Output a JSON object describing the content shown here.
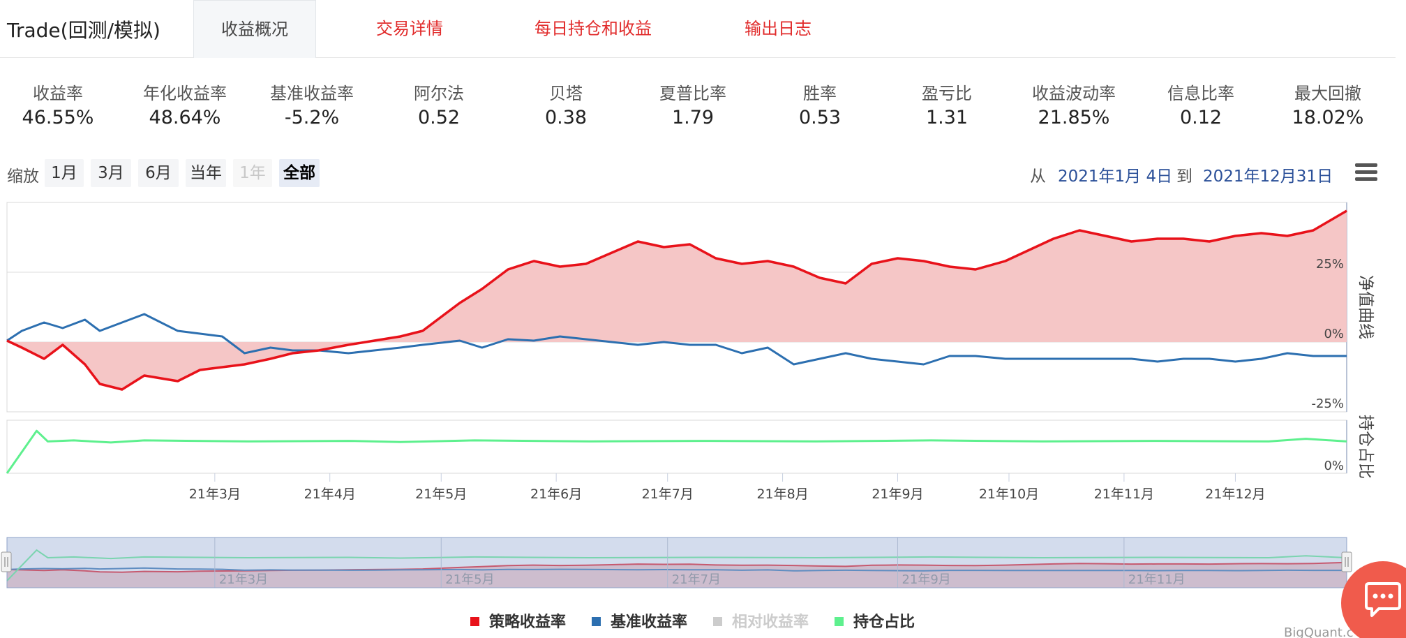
{
  "header": {
    "app_title": "Trade(回测/模拟)",
    "tabs": [
      {
        "label": "收益概况",
        "active": true
      },
      {
        "label": "交易详情",
        "active": false
      },
      {
        "label": "每日持仓和收益",
        "active": false
      },
      {
        "label": "输出日志",
        "active": false
      }
    ]
  },
  "stats": [
    {
      "label": "收益率",
      "value": "46.55%"
    },
    {
      "label": "年化收益率",
      "value": "48.64%"
    },
    {
      "label": "基准收益率",
      "value": "-5.2%"
    },
    {
      "label": "阿尔法",
      "value": "0.52"
    },
    {
      "label": "贝塔",
      "value": "0.38"
    },
    {
      "label": "夏普比率",
      "value": "1.79"
    },
    {
      "label": "胜率",
      "value": "0.53"
    },
    {
      "label": "盈亏比",
      "value": "1.31"
    },
    {
      "label": "收益波动率",
      "value": "21.85%"
    },
    {
      "label": "信息比率",
      "value": "0.12"
    },
    {
      "label": "最大回撤",
      "value": "18.02%"
    }
  ],
  "zoom": {
    "label": "缩放",
    "buttons": [
      {
        "label": "1月",
        "state": "normal"
      },
      {
        "label": "3月",
        "state": "normal"
      },
      {
        "label": "6月",
        "state": "normal"
      },
      {
        "label": "当年",
        "state": "normal"
      },
      {
        "label": "1年",
        "state": "disabled"
      },
      {
        "label": "全部",
        "state": "selected"
      }
    ],
    "from_label": "从",
    "from_date": "2021年1月 4日",
    "to_label": "到",
    "to_date": "2021年12月31日",
    "menu_icon": "hamburger-menu-icon"
  },
  "chart_data": {
    "type": "line",
    "x_range": [
      "2021-01-04",
      "2021-12-31"
    ],
    "x_tick_labels": [
      "21年3月",
      "21年4月",
      "21年5月",
      "21年6月",
      "21年7月",
      "21年8月",
      "21年9月",
      "21年10月",
      "21年11月",
      "21年12月"
    ],
    "navigator_tick_labels": [
      "21年3月",
      "21年5月",
      "21年7月",
      "21年9月",
      "21年11月"
    ],
    "main_panel": {
      "axis_title": "净值曲线",
      "y_tick_labels": [
        "25%",
        "0%",
        "-25%"
      ],
      "ylim": [
        -25,
        50
      ],
      "series": [
        {
          "name": "策略收益率",
          "color": "#e8121a",
          "fill": "#f5c6c6",
          "x": [
            "2021-01-04",
            "2021-01-08",
            "2021-01-14",
            "2021-01-19",
            "2021-01-25",
            "2021-01-29",
            "2021-02-04",
            "2021-02-10",
            "2021-02-19",
            "2021-02-25",
            "2021-03-03",
            "2021-03-09",
            "2021-03-16",
            "2021-03-22",
            "2021-03-29",
            "2021-04-06",
            "2021-04-13",
            "2021-04-20",
            "2021-04-26",
            "2021-05-06",
            "2021-05-12",
            "2021-05-19",
            "2021-05-26",
            "2021-06-02",
            "2021-06-09",
            "2021-06-16",
            "2021-06-23",
            "2021-06-30",
            "2021-07-07",
            "2021-07-14",
            "2021-07-21",
            "2021-07-28",
            "2021-08-04",
            "2021-08-11",
            "2021-08-18",
            "2021-08-25",
            "2021-09-01",
            "2021-09-08",
            "2021-09-15",
            "2021-09-22",
            "2021-09-30",
            "2021-10-13",
            "2021-10-20",
            "2021-10-27",
            "2021-11-03",
            "2021-11-10",
            "2021-11-17",
            "2021-11-24",
            "2021-12-01",
            "2021-12-08",
            "2021-12-15",
            "2021-12-22",
            "2021-12-31"
          ],
          "y": [
            0.5,
            -2,
            -6,
            -1,
            -8,
            -15,
            -17,
            -12,
            -14,
            -10,
            -9,
            -8,
            -6,
            -4,
            -3,
            -1,
            0.5,
            2,
            4,
            14,
            19,
            26,
            29,
            27,
            28,
            32,
            36,
            34,
            35,
            30,
            28,
            29,
            27,
            23,
            21,
            28,
            30,
            29,
            27,
            26,
            29,
            37,
            40,
            38,
            36,
            37,
            37,
            36,
            38,
            39,
            38,
            40,
            47
          ]
        },
        {
          "name": "基准收益率",
          "color": "#2c6fb0",
          "x": [
            "2021-01-04",
            "2021-01-08",
            "2021-01-14",
            "2021-01-19",
            "2021-01-25",
            "2021-01-29",
            "2021-02-04",
            "2021-02-10",
            "2021-02-19",
            "2021-02-25",
            "2021-03-03",
            "2021-03-09",
            "2021-03-16",
            "2021-03-22",
            "2021-03-29",
            "2021-04-06",
            "2021-04-13",
            "2021-04-20",
            "2021-04-26",
            "2021-05-06",
            "2021-05-12",
            "2021-05-19",
            "2021-05-26",
            "2021-06-02",
            "2021-06-09",
            "2021-06-16",
            "2021-06-23",
            "2021-06-30",
            "2021-07-07",
            "2021-07-14",
            "2021-07-21",
            "2021-07-28",
            "2021-08-04",
            "2021-08-11",
            "2021-08-18",
            "2021-08-25",
            "2021-09-01",
            "2021-09-08",
            "2021-09-15",
            "2021-09-22",
            "2021-09-30",
            "2021-10-13",
            "2021-10-20",
            "2021-10-27",
            "2021-11-03",
            "2021-11-10",
            "2021-11-17",
            "2021-11-24",
            "2021-12-01",
            "2021-12-08",
            "2021-12-15",
            "2021-12-22",
            "2021-12-31"
          ],
          "y": [
            0.5,
            4,
            7,
            5,
            8,
            4,
            7,
            10,
            4,
            3,
            2,
            -4,
            -2,
            -3,
            -3,
            -4,
            -3,
            -2,
            -1,
            0.5,
            -2,
            1,
            0.5,
            2,
            1,
            0,
            -1,
            0,
            -1,
            -1,
            -4,
            -2,
            -8,
            -6,
            -4,
            -6,
            -7,
            -8,
            -5,
            -5,
            -6,
            -6,
            -6,
            -6,
            -6,
            -7,
            -6,
            -6,
            -7,
            -6,
            -4,
            -5,
            -5
          ]
        }
      ]
    },
    "position_panel": {
      "axis_title": "持仓占比",
      "y_tick_labels": [
        "0%"
      ],
      "ylim": [
        0,
        100
      ],
      "series": [
        {
          "name": "持仓占比",
          "color": "#5ef08e",
          "x": [
            "2021-01-04",
            "2021-01-12",
            "2021-01-15",
            "2021-01-22",
            "2021-02-01",
            "2021-02-10",
            "2021-03-10",
            "2021-04-06",
            "2021-04-20",
            "2021-05-10",
            "2021-06-10",
            "2021-07-10",
            "2021-08-10",
            "2021-09-10",
            "2021-10-10",
            "2021-11-10",
            "2021-12-10",
            "2021-12-20",
            "2021-12-31"
          ],
          "y": [
            0,
            80,
            60,
            62,
            58,
            62,
            60,
            61,
            59,
            62,
            60,
            61,
            60,
            62,
            60,
            61,
            60,
            65,
            60
          ]
        },
        {
          "name": "相对收益率",
          "color": "#cccccc",
          "hidden": true,
          "x": [],
          "y": []
        }
      ]
    }
  },
  "legend": [
    {
      "label": "策略收益率",
      "color": "#e8121a",
      "enabled": true
    },
    {
      "label": "基准收益率",
      "color": "#2c6fb0",
      "enabled": true
    },
    {
      "label": "相对收益率",
      "color": "#cccccc",
      "enabled": false
    },
    {
      "label": "持仓占比",
      "color": "#5ef08e",
      "enabled": true
    }
  ],
  "credit": "BigQuant.c",
  "chat_icon": "chat-bubble-icon"
}
